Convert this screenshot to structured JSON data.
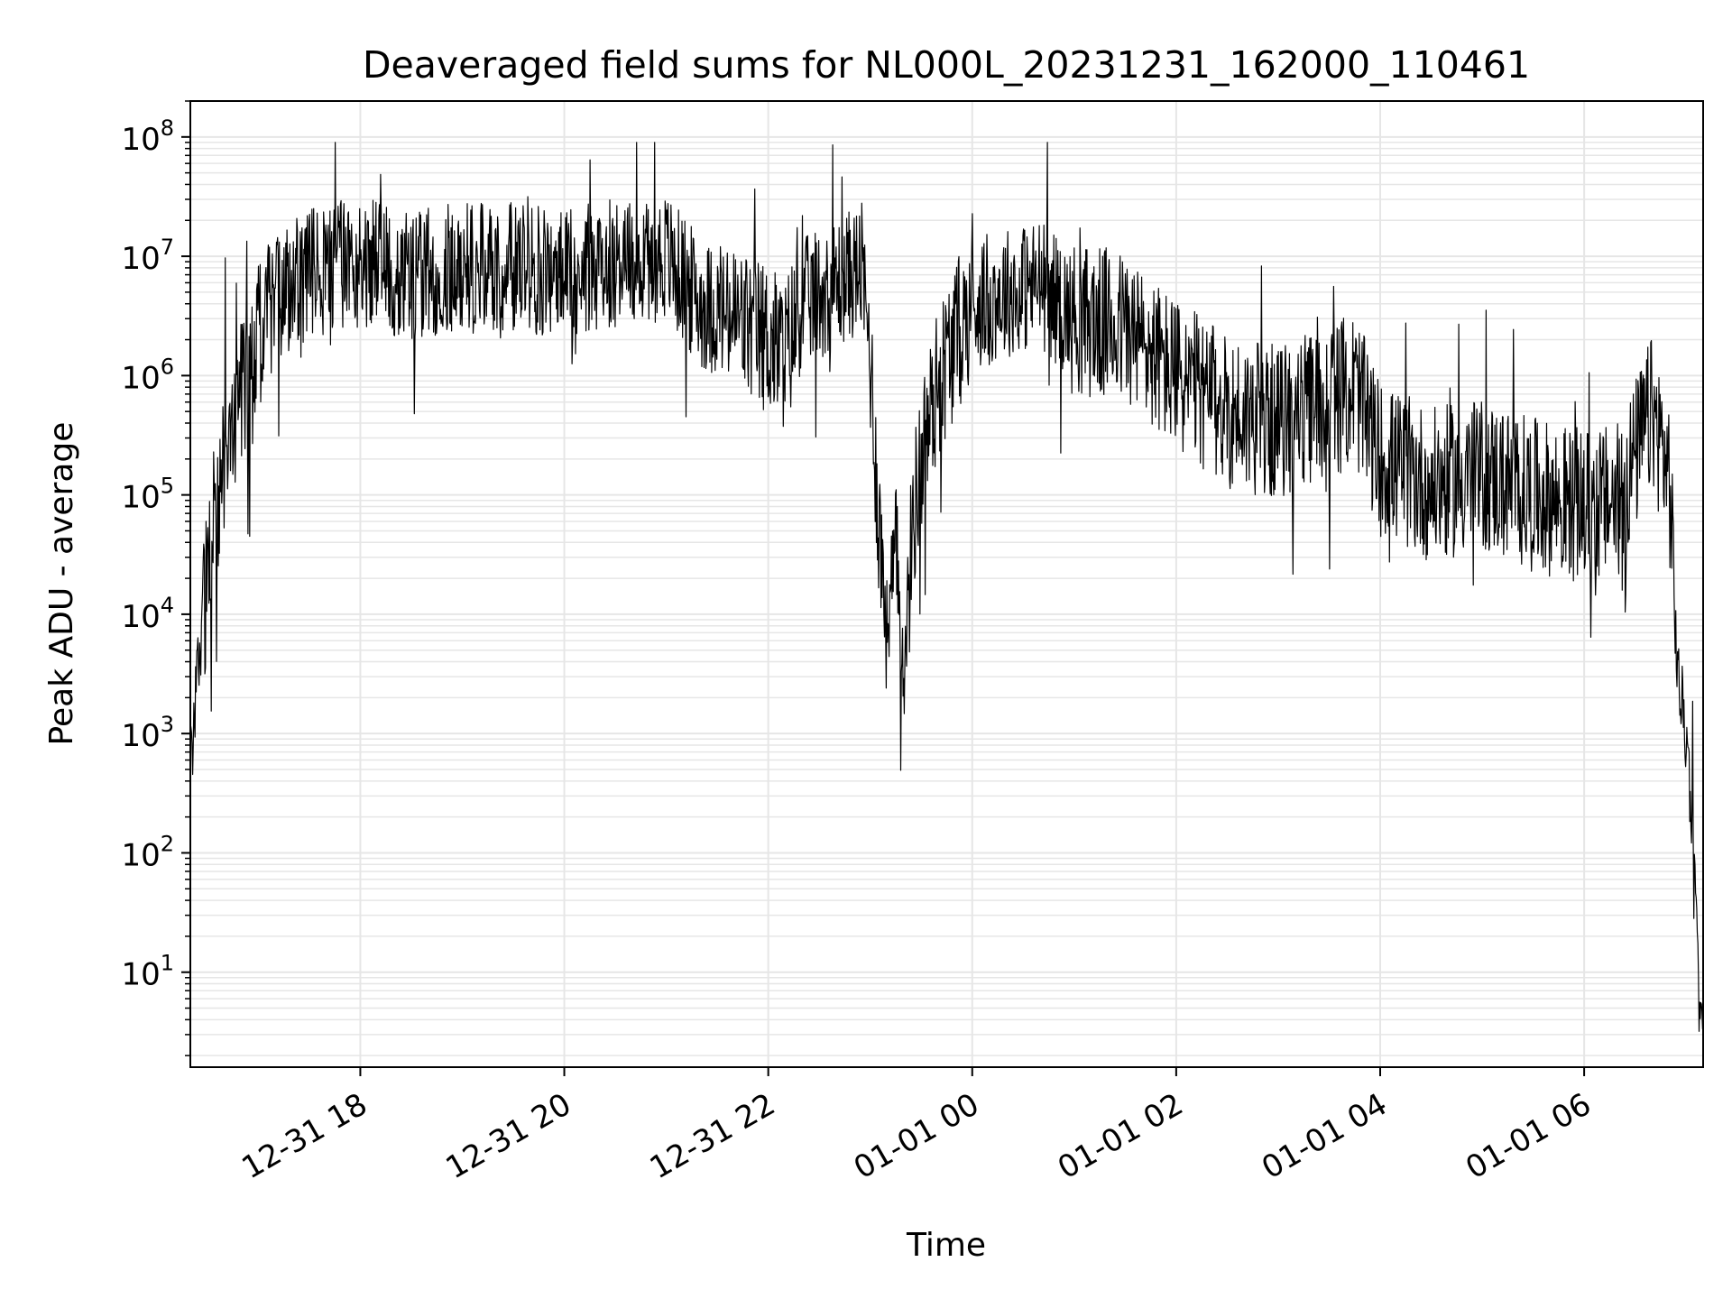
{
  "chart_data": {
    "type": "line",
    "title": "Deaveraged field sums for NL000L_20231231_162000_110461",
    "xlabel": "Time",
    "ylabel": "Peak ADU - average",
    "yscale": "log",
    "ylim": [
      1.6,
      200000000
    ],
    "xlim": [
      "2023-12-31 16:20",
      "2024-01-01 07:10"
    ],
    "grid": true,
    "line_color": "#000000",
    "grid_color": "#e6e6e6",
    "x_ticks": [
      {
        "time": "2023-12-31 18:00",
        "label": "12-31 18"
      },
      {
        "time": "2023-12-31 20:00",
        "label": "12-31 20"
      },
      {
        "time": "2023-12-31 22:00",
        "label": "12-31 22"
      },
      {
        "time": "2024-01-01 00:00",
        "label": "01-01 00"
      },
      {
        "time": "2024-01-01 02:00",
        "label": "01-01 02"
      },
      {
        "time": "2024-01-01 04:00",
        "label": "01-01 04"
      },
      {
        "time": "2024-01-01 06:00",
        "label": "01-01 06"
      }
    ],
    "y_ticks": [
      {
        "value": 10,
        "base": "10",
        "exp": "1"
      },
      {
        "value": 100,
        "base": "10",
        "exp": "2"
      },
      {
        "value": 1000,
        "base": "10",
        "exp": "3"
      },
      {
        "value": 10000,
        "base": "10",
        "exp": "4"
      },
      {
        "value": 100000,
        "base": "10",
        "exp": "5"
      },
      {
        "value": 1000000,
        "base": "10",
        "exp": "6"
      },
      {
        "value": 10000000,
        "base": "10",
        "exp": "7"
      },
      {
        "value": 100000000,
        "base": "10",
        "exp": "8"
      }
    ],
    "series": [
      {
        "x": [
          "2023-12-31 16:20",
          "2023-12-31 16:25",
          "2023-12-31 16:30",
          "2023-12-31 16:35",
          "2023-12-31 16:40",
          "2023-12-31 16:50",
          "2023-12-31 17:00",
          "2023-12-31 17:10",
          "2023-12-31 17:20",
          "2023-12-31 17:40",
          "2023-12-31 18:00",
          "2023-12-31 18:30",
          "2023-12-31 19:00",
          "2023-12-31 19:30",
          "2023-12-31 20:00",
          "2023-12-31 20:30",
          "2023-12-31 21:00",
          "2023-12-31 21:20",
          "2023-12-31 21:40",
          "2023-12-31 22:00",
          "2023-12-31 22:10",
          "2023-12-31 22:20",
          "2023-12-31 22:40",
          "2023-12-31 22:55",
          "2023-12-31 23:00",
          "2023-12-31 23:05",
          "2023-12-31 23:10",
          "2023-12-31 23:15",
          "2023-12-31 23:20",
          "2023-12-31 23:25",
          "2023-12-31 23:30",
          "2023-12-31 23:40",
          "2023-12-31 23:50",
          "2024-01-01 00:00",
          "2024-01-01 00:20",
          "2024-01-01 00:40",
          "2024-01-01 01:00",
          "2024-01-01 01:30",
          "2024-01-01 02:00",
          "2024-01-01 02:30",
          "2024-01-01 03:00",
          "2024-01-01 03:30",
          "2024-01-01 03:45",
          "2024-01-01 04:00",
          "2024-01-01 04:30",
          "2024-01-01 05:00",
          "2024-01-01 05:30",
          "2024-01-01 06:00",
          "2024-01-01 06:20",
          "2024-01-01 06:40",
          "2024-01-01 06:50",
          "2024-01-01 06:55",
          "2024-01-01 07:00",
          "2024-01-01 07:02",
          "2024-01-01 07:05",
          "2024-01-01 07:08",
          "2024-01-01 07:10"
        ],
        "values": [
          500,
          5000,
          20000,
          60000,
          200000,
          800000,
          2000000,
          4000000,
          6000000,
          8000000,
          9000000,
          7000000,
          8000000,
          8000000,
          7000000,
          9000000,
          10000000,
          4000000,
          3000000,
          2000000,
          1500000,
          4000000,
          6000000,
          8000000,
          1500000,
          60000,
          8000,
          30000,
          3000,
          60000,
          200000,
          900000,
          2000000,
          4000000,
          5000000,
          6000000,
          3000000,
          2500000,
          1000000,
          500000,
          400000,
          600000,
          800000,
          200000,
          120000,
          150000,
          100000,
          80000,
          90000,
          500000,
          150000,
          3000,
          1000,
          400,
          100,
          5,
          4
        ]
      }
    ]
  }
}
